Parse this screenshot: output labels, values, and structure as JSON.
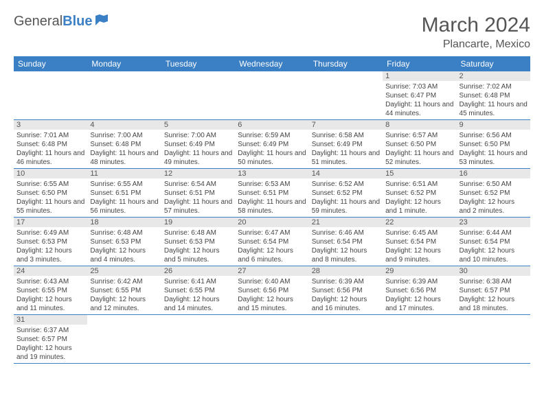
{
  "logo": {
    "part1": "General",
    "part2": "Blue"
  },
  "title": "March 2024",
  "location": "Plancarte, Mexico",
  "weekdays": [
    "Sunday",
    "Monday",
    "Tuesday",
    "Wednesday",
    "Thursday",
    "Friday",
    "Saturday"
  ],
  "colors": {
    "header_bg": "#3b7fc4",
    "header_text": "#ffffff",
    "daynum_bg": "#e8e8e8",
    "border": "#3b7fc4",
    "text": "#444444",
    "title_text": "#555555"
  },
  "days": {
    "1": {
      "sunrise": "7:03 AM",
      "sunset": "6:47 PM",
      "daylight": "11 hours and 44 minutes."
    },
    "2": {
      "sunrise": "7:02 AM",
      "sunset": "6:48 PM",
      "daylight": "11 hours and 45 minutes."
    },
    "3": {
      "sunrise": "7:01 AM",
      "sunset": "6:48 PM",
      "daylight": "11 hours and 46 minutes."
    },
    "4": {
      "sunrise": "7:00 AM",
      "sunset": "6:48 PM",
      "daylight": "11 hours and 48 minutes."
    },
    "5": {
      "sunrise": "7:00 AM",
      "sunset": "6:49 PM",
      "daylight": "11 hours and 49 minutes."
    },
    "6": {
      "sunrise": "6:59 AM",
      "sunset": "6:49 PM",
      "daylight": "11 hours and 50 minutes."
    },
    "7": {
      "sunrise": "6:58 AM",
      "sunset": "6:49 PM",
      "daylight": "11 hours and 51 minutes."
    },
    "8": {
      "sunrise": "6:57 AM",
      "sunset": "6:50 PM",
      "daylight": "11 hours and 52 minutes."
    },
    "9": {
      "sunrise": "6:56 AM",
      "sunset": "6:50 PM",
      "daylight": "11 hours and 53 minutes."
    },
    "10": {
      "sunrise": "6:55 AM",
      "sunset": "6:50 PM",
      "daylight": "11 hours and 55 minutes."
    },
    "11": {
      "sunrise": "6:55 AM",
      "sunset": "6:51 PM",
      "daylight": "11 hours and 56 minutes."
    },
    "12": {
      "sunrise": "6:54 AM",
      "sunset": "6:51 PM",
      "daylight": "11 hours and 57 minutes."
    },
    "13": {
      "sunrise": "6:53 AM",
      "sunset": "6:51 PM",
      "daylight": "11 hours and 58 minutes."
    },
    "14": {
      "sunrise": "6:52 AM",
      "sunset": "6:52 PM",
      "daylight": "11 hours and 59 minutes."
    },
    "15": {
      "sunrise": "6:51 AM",
      "sunset": "6:52 PM",
      "daylight": "12 hours and 1 minute."
    },
    "16": {
      "sunrise": "6:50 AM",
      "sunset": "6:52 PM",
      "daylight": "12 hours and 2 minutes."
    },
    "17": {
      "sunrise": "6:49 AM",
      "sunset": "6:53 PM",
      "daylight": "12 hours and 3 minutes."
    },
    "18": {
      "sunrise": "6:48 AM",
      "sunset": "6:53 PM",
      "daylight": "12 hours and 4 minutes."
    },
    "19": {
      "sunrise": "6:48 AM",
      "sunset": "6:53 PM",
      "daylight": "12 hours and 5 minutes."
    },
    "20": {
      "sunrise": "6:47 AM",
      "sunset": "6:54 PM",
      "daylight": "12 hours and 6 minutes."
    },
    "21": {
      "sunrise": "6:46 AM",
      "sunset": "6:54 PM",
      "daylight": "12 hours and 8 minutes."
    },
    "22": {
      "sunrise": "6:45 AM",
      "sunset": "6:54 PM",
      "daylight": "12 hours and 9 minutes."
    },
    "23": {
      "sunrise": "6:44 AM",
      "sunset": "6:54 PM",
      "daylight": "12 hours and 10 minutes."
    },
    "24": {
      "sunrise": "6:43 AM",
      "sunset": "6:55 PM",
      "daylight": "12 hours and 11 minutes."
    },
    "25": {
      "sunrise": "6:42 AM",
      "sunset": "6:55 PM",
      "daylight": "12 hours and 12 minutes."
    },
    "26": {
      "sunrise": "6:41 AM",
      "sunset": "6:55 PM",
      "daylight": "12 hours and 14 minutes."
    },
    "27": {
      "sunrise": "6:40 AM",
      "sunset": "6:56 PM",
      "daylight": "12 hours and 15 minutes."
    },
    "28": {
      "sunrise": "6:39 AM",
      "sunset": "6:56 PM",
      "daylight": "12 hours and 16 minutes."
    },
    "29": {
      "sunrise": "6:39 AM",
      "sunset": "6:56 PM",
      "daylight": "12 hours and 17 minutes."
    },
    "30": {
      "sunrise": "6:38 AM",
      "sunset": "6:57 PM",
      "daylight": "12 hours and 18 minutes."
    },
    "31": {
      "sunrise": "6:37 AM",
      "sunset": "6:57 PM",
      "daylight": "12 hours and 19 minutes."
    }
  },
  "labels": {
    "sunrise_prefix": "Sunrise: ",
    "sunset_prefix": "Sunset: ",
    "daylight_prefix": "Daylight: "
  },
  "layout": {
    "first_day_column": 5,
    "num_days": 31
  }
}
